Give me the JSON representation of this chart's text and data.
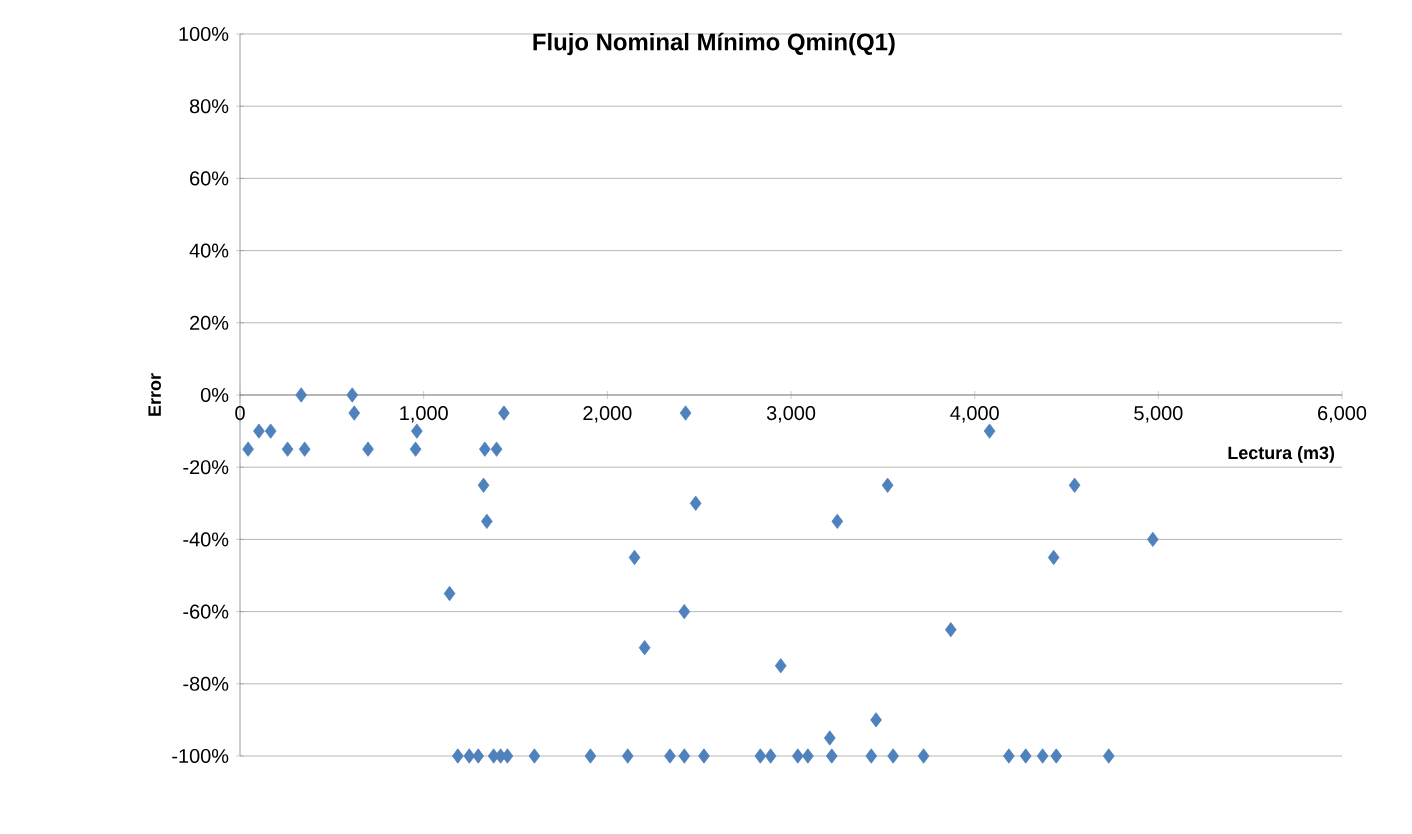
{
  "chart_data": {
    "type": "scatter",
    "title": "Flujo Nominal Mínimo Qmin(Q1)",
    "xlabel": "Lectura (m3)",
    "ylabel": "Error",
    "xlim": [
      0,
      6000
    ],
    "ylim": [
      -100,
      100
    ],
    "xticks": [
      0,
      {
        "value": 1000,
        "label": "1,000"
      },
      {
        "value": 2000,
        "label": "2,000"
      },
      {
        "value": 3000,
        "label": "3,000"
      },
      {
        "value": 4000,
        "label": "4,000"
      },
      {
        "value": 5000,
        "label": "5,000"
      },
      {
        "value": 6000,
        "label": "6,000"
      }
    ],
    "yticks": [
      {
        "value": -100,
        "label": "-100%"
      },
      {
        "value": -80,
        "label": "-80%"
      },
      {
        "value": -60,
        "label": "-60%"
      },
      {
        "value": -40,
        "label": "-40%"
      },
      {
        "value": -20,
        "label": "-20%"
      },
      {
        "value": 0,
        "label": "0%"
      },
      {
        "value": 20,
        "label": "20%"
      },
      {
        "value": 40,
        "label": "40%"
      },
      {
        "value": 60,
        "label": "60%"
      },
      {
        "value": 80,
        "label": "80%"
      },
      {
        "value": 100,
        "label": "100%"
      }
    ],
    "grid": "y",
    "marker": "diamond",
    "series": [
      {
        "color": "#4f81bd",
        "x": [
          44,
          103,
          167,
          259,
          333,
          352,
          611,
          622,
          697,
          963,
          956,
          1333,
          1397,
          1437,
          1326,
          1344,
          1141,
          2148,
          2203,
          2426,
          2481,
          2419,
          2944,
          1186,
          1248,
          1297,
          1381,
          1419,
          1456,
          1603,
          1908,
          2111,
          2341,
          2419,
          2526,
          2833,
          2889,
          3037,
          3092,
          4081,
          3526,
          4544,
          3252,
          4430,
          4970,
          3870,
          3463,
          3211,
          3222,
          3437,
          3556,
          3722,
          4186,
          4278,
          4370,
          4444,
          4730
        ],
        "values": [
          -15,
          -10,
          -10,
          -15,
          0,
          -15,
          0,
          -5,
          -15,
          -10,
          -15,
          -15,
          -15,
          -5,
          -25,
          -35,
          -55,
          -45,
          -70,
          -5,
          -30,
          -60,
          -75,
          -100,
          -100,
          -100,
          -100,
          -100,
          -100,
          -100,
          -100,
          -100,
          -100,
          -100,
          -100,
          -100,
          -100,
          -100,
          -100,
          -10,
          -25,
          -25,
          -35,
          -45,
          -40,
          -65,
          -90,
          -95,
          -100,
          -100,
          -100,
          -100,
          -100,
          -100,
          -100,
          -100,
          -100
        ]
      }
    ]
  }
}
